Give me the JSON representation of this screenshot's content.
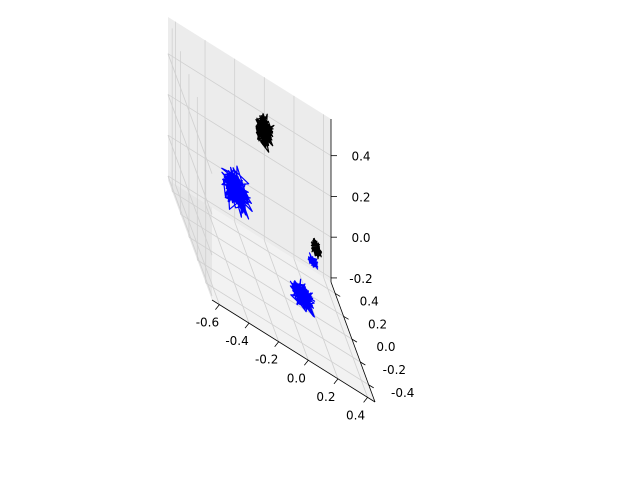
{
  "chart_data": {
    "type": "scatter",
    "projection": "3d",
    "title": "",
    "xlabel": "",
    "ylabel": "",
    "zlabel": "",
    "xlim": [
      -0.65,
      0.45
    ],
    "ylim": [
      -0.55,
      0.5
    ],
    "zlim": [
      -0.22,
      0.58
    ],
    "x_ticks": [
      "-0.6",
      "-0.4",
      "-0.2",
      "0.0",
      "0.2",
      "0.4"
    ],
    "y_ticks": [
      "-0.4",
      "-0.2",
      "0.0",
      "0.2",
      "0.4"
    ],
    "z_ticks": [
      "-0.2",
      "0.0",
      "0.2",
      "0.4"
    ],
    "grid": true,
    "legend": "none",
    "series": [
      {
        "color": "#000000",
        "description": "black wireframe clusters (dense trajectory lines)",
        "clusters": [
          {
            "center": [
              -0.05,
              0.3,
              0.4
            ],
            "spread": [
              0.07,
              0.05,
              0.1
            ]
          },
          {
            "center": [
              0.25,
              0.15,
              0.05
            ],
            "spread": [
              0.04,
              0.03,
              0.05
            ]
          }
        ]
      },
      {
        "color": "#0000ff",
        "description": "blue wireframe clusters (dense trajectory lines)",
        "clusters": [
          {
            "center": [
              -0.35,
              -0.05,
              0.18
            ],
            "spread": [
              0.12,
              0.1,
              0.12
            ]
          },
          {
            "center": [
              0.05,
              -0.25,
              -0.05
            ],
            "spread": [
              0.1,
              0.06,
              0.08
            ]
          },
          {
            "center": [
              0.2,
              0.05,
              0.02
            ],
            "spread": [
              0.04,
              0.03,
              0.03
            ]
          }
        ]
      }
    ]
  }
}
